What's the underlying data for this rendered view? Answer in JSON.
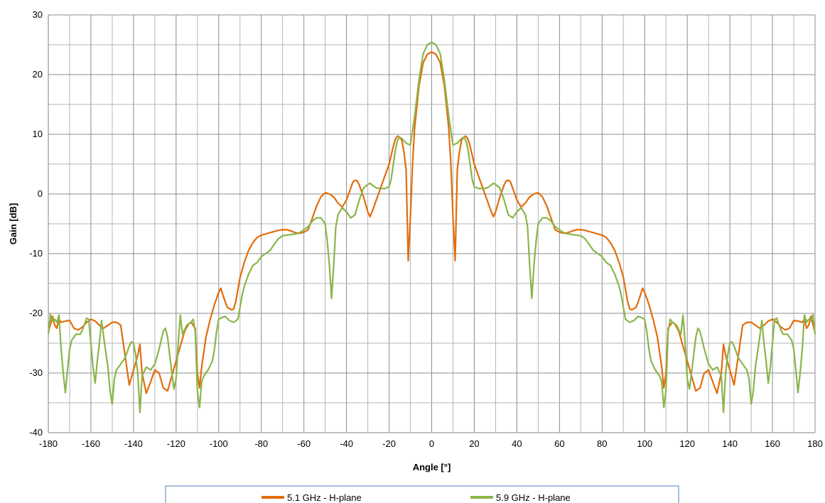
{
  "chart_data": {
    "type": "line",
    "title": "",
    "xlabel": "Angle [°]",
    "ylabel": "Gain [dB]",
    "xlim": [
      -180,
      180
    ],
    "ylim": [
      -40,
      30
    ],
    "xticks": [
      -180,
      -160,
      -140,
      -120,
      -100,
      -80,
      -60,
      -40,
      -20,
      0,
      20,
      40,
      60,
      80,
      100,
      120,
      140,
      160,
      180
    ],
    "yticks": [
      -40,
      -30,
      -20,
      -10,
      0,
      10,
      20,
      30
    ],
    "grid": true,
    "legend_position": "bottom",
    "series": [
      {
        "name": "5.1 GHz - H-plane",
        "color": "#e46c0a",
        "points": [
          [
            0,
            23.8
          ],
          [
            2,
            23.4
          ],
          [
            4,
            22
          ],
          [
            6,
            18
          ],
          [
            8,
            11
          ],
          [
            9,
            5
          ],
          [
            10,
            -4
          ],
          [
            11,
            -11.2
          ],
          [
            12,
            4
          ],
          [
            13,
            7
          ],
          [
            14,
            9
          ],
          [
            15,
            9.5
          ],
          [
            16,
            9.7
          ],
          [
            17,
            9.2
          ],
          [
            18,
            8
          ],
          [
            20,
            5
          ],
          [
            22,
            3
          ],
          [
            24,
            1
          ],
          [
            26,
            -1
          ],
          [
            28,
            -3
          ],
          [
            29,
            -3.8
          ],
          [
            30,
            -3
          ],
          [
            32,
            -0.5
          ],
          [
            34,
            1.5
          ],
          [
            35,
            2.2
          ],
          [
            36,
            2.3
          ],
          [
            37,
            2
          ],
          [
            38,
            1
          ],
          [
            40,
            -1
          ],
          [
            42,
            -2.2
          ],
          [
            44,
            -1.5
          ],
          [
            46,
            -0.5
          ],
          [
            48,
            0
          ],
          [
            50,
            0.2
          ],
          [
            52,
            -0.5
          ],
          [
            54,
            -2
          ],
          [
            56,
            -4
          ],
          [
            58,
            -6
          ],
          [
            60,
            -6.4
          ],
          [
            62,
            -6.6
          ],
          [
            64,
            -6.5
          ],
          [
            66,
            -6.2
          ],
          [
            68,
            -6
          ],
          [
            70,
            -6
          ],
          [
            72,
            -6.1
          ],
          [
            74,
            -6.3
          ],
          [
            76,
            -6.5
          ],
          [
            78,
            -6.7
          ],
          [
            80,
            -6.9
          ],
          [
            82,
            -7.3
          ],
          [
            84,
            -8.2
          ],
          [
            86,
            -9.5
          ],
          [
            88,
            -11.5
          ],
          [
            90,
            -14
          ],
          [
            92,
            -18
          ],
          [
            93,
            -19.3
          ],
          [
            94,
            -19.4
          ],
          [
            96,
            -19
          ],
          [
            98,
            -17
          ],
          [
            99,
            -15.8
          ],
          [
            100,
            -16.5
          ],
          [
            102,
            -18.5
          ],
          [
            104,
            -21
          ],
          [
            106,
            -24
          ],
          [
            108,
            -29
          ],
          [
            109,
            -32.5
          ],
          [
            110,
            -30
          ],
          [
            111,
            -22.5
          ],
          [
            112,
            -22
          ],
          [
            113,
            -21.5
          ],
          [
            114,
            -21.7
          ],
          [
            116,
            -23
          ],
          [
            118,
            -25.5
          ],
          [
            120,
            -28
          ],
          [
            122,
            -30.5
          ],
          [
            124,
            -33
          ],
          [
            126,
            -32.5
          ],
          [
            128,
            -30
          ],
          [
            130,
            -29.5
          ],
          [
            132,
            -31.5
          ],
          [
            134,
            -33.4
          ],
          [
            136,
            -30
          ],
          [
            137,
            -25.2
          ],
          [
            138,
            -27
          ],
          [
            140,
            -29.5
          ],
          [
            142,
            -32
          ],
          [
            144,
            -27
          ],
          [
            146,
            -22
          ],
          [
            148,
            -21.5
          ],
          [
            150,
            -21.5
          ],
          [
            152,
            -22
          ],
          [
            154,
            -22.5
          ],
          [
            156,
            -22
          ],
          [
            158,
            -21.3
          ],
          [
            160,
            -21
          ],
          [
            162,
            -21.5
          ],
          [
            164,
            -22.3
          ],
          [
            166,
            -22.8
          ],
          [
            168,
            -22.5
          ],
          [
            170,
            -21.2
          ],
          [
            172,
            -21.3
          ],
          [
            174,
            -21.5
          ],
          [
            175,
            -21
          ],
          [
            176,
            -22.5
          ],
          [
            177,
            -22
          ],
          [
            178,
            -20.5
          ],
          [
            180,
            -23.2
          ]
        ]
      },
      {
        "name": "5.9 GHz - H-plane",
        "color": "#8ab54a",
        "points": [
          [
            0,
            25.4
          ],
          [
            2,
            25
          ],
          [
            4,
            23.5
          ],
          [
            6,
            19
          ],
          [
            8,
            13
          ],
          [
            10,
            8.2
          ],
          [
            12,
            8.5
          ],
          [
            14,
            9.3
          ],
          [
            15,
            9.5
          ],
          [
            16,
            9
          ],
          [
            17,
            7.5
          ],
          [
            18,
            5
          ],
          [
            19,
            2.5
          ],
          [
            20,
            1.2
          ],
          [
            22,
            0.9
          ],
          [
            24,
            0.9
          ],
          [
            26,
            1
          ],
          [
            28,
            1.5
          ],
          [
            29,
            1.8
          ],
          [
            30,
            1.6
          ],
          [
            32,
            1
          ],
          [
            34,
            -1
          ],
          [
            36,
            -3.5
          ],
          [
            38,
            -4
          ],
          [
            40,
            -3
          ],
          [
            42,
            -2.3
          ],
          [
            44,
            -3.5
          ],
          [
            45,
            -5.5
          ],
          [
            46,
            -12
          ],
          [
            47,
            -17.5
          ],
          [
            48,
            -12
          ],
          [
            49,
            -8
          ],
          [
            50,
            -5
          ],
          [
            52,
            -4
          ],
          [
            54,
            -4
          ],
          [
            56,
            -4.5
          ],
          [
            58,
            -5.5
          ],
          [
            60,
            -6
          ],
          [
            62,
            -6.5
          ],
          [
            64,
            -6.7
          ],
          [
            66,
            -6.8
          ],
          [
            68,
            -6.9
          ],
          [
            70,
            -7
          ],
          [
            72,
            -7.5
          ],
          [
            74,
            -8.5
          ],
          [
            76,
            -9.5
          ],
          [
            78,
            -10
          ],
          [
            80,
            -10.5
          ],
          [
            82,
            -11.5
          ],
          [
            84,
            -12
          ],
          [
            86,
            -13.5
          ],
          [
            88,
            -15.5
          ],
          [
            89,
            -17
          ],
          [
            90,
            -19
          ],
          [
            91,
            -21
          ],
          [
            93,
            -21.5
          ],
          [
            95,
            -21.2
          ],
          [
            97,
            -20.5
          ],
          [
            99,
            -20.8
          ],
          [
            100,
            -21
          ],
          [
            101,
            -23
          ],
          [
            102,
            -26
          ],
          [
            103,
            -28
          ],
          [
            105,
            -29.5
          ],
          [
            107,
            -30.5
          ],
          [
            108,
            -31.5
          ],
          [
            109,
            -35.8
          ],
          [
            110,
            -33
          ],
          [
            111,
            -23
          ],
          [
            112,
            -21
          ],
          [
            113,
            -21.5
          ],
          [
            115,
            -22
          ],
          [
            117,
            -23.5
          ],
          [
            118,
            -20.3
          ],
          [
            119,
            -25
          ],
          [
            120,
            -31
          ],
          [
            121,
            -32.7
          ],
          [
            122,
            -30
          ],
          [
            123,
            -27
          ],
          [
            124,
            -24
          ],
          [
            125,
            -22.5
          ],
          [
            126,
            -23
          ],
          [
            128,
            -26
          ],
          [
            130,
            -28.5
          ],
          [
            132,
            -29.5
          ],
          [
            134,
            -29
          ],
          [
            136,
            -30.5
          ],
          [
            137,
            -36.6
          ],
          [
            138,
            -30
          ],
          [
            139,
            -27
          ],
          [
            140,
            -25
          ],
          [
            141,
            -24.8
          ],
          [
            142,
            -25.5
          ],
          [
            144,
            -27.5
          ],
          [
            146,
            -28.5
          ],
          [
            148,
            -29.5
          ],
          [
            149,
            -31
          ],
          [
            150,
            -35.2
          ],
          [
            151,
            -33
          ],
          [
            152,
            -29
          ],
          [
            154,
            -24
          ],
          [
            155,
            -21.2
          ],
          [
            156,
            -25
          ],
          [
            157,
            -28
          ],
          [
            158,
            -31.7
          ],
          [
            159,
            -29
          ],
          [
            160,
            -25
          ],
          [
            161,
            -21
          ],
          [
            162,
            -20.8
          ],
          [
            164,
            -22.8
          ],
          [
            165,
            -23.5
          ],
          [
            167,
            -23.5
          ],
          [
            169,
            -24.5
          ],
          [
            170,
            -26
          ],
          [
            171,
            -29.5
          ],
          [
            172,
            -33.3
          ],
          [
            173,
            -30
          ],
          [
            174,
            -26
          ],
          [
            175,
            -20.3
          ],
          [
            176,
            -21.5
          ],
          [
            177,
            -21
          ],
          [
            178,
            -21.3
          ],
          [
            179,
            -20.2
          ],
          [
            180,
            -23.5
          ]
        ]
      }
    ]
  }
}
